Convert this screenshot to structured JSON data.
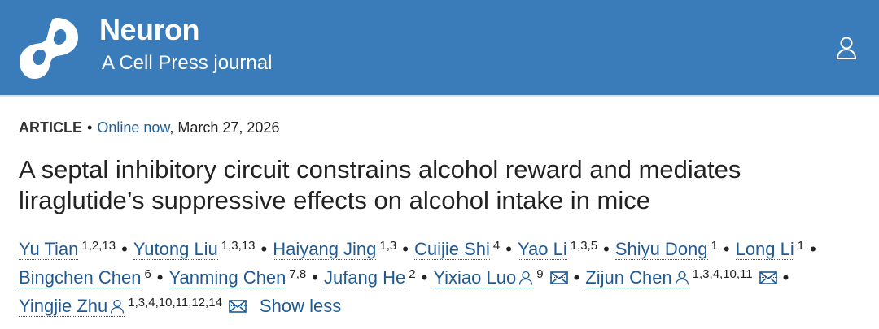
{
  "header": {
    "brand": "Neuron",
    "tagline": "A Cell Press journal",
    "bg_color": "#3a7cb9",
    "logo_icon": "cell-press-logo",
    "user_icon": "person-icon"
  },
  "article": {
    "type": "ARTICLE",
    "separator": "•",
    "online_label": "Online now",
    "date": ", March 27, 2026",
    "title": "A septal inhibitory circuit constrains alcohol reward and mediates liraglutide’s suppressive effects on alcohol intake in mice"
  },
  "authors": {
    "lines": [
      [
        {
          "name": "Yu Tian",
          "sup": "1,2,13",
          "sep": "•"
        },
        {
          "name": "Yutong Liu",
          "sup": "1,3,13",
          "sep": "•"
        },
        {
          "name": "Haiyang Jing",
          "sup": "1,3",
          "sep": "•"
        },
        {
          "name": "Cuijie Shi",
          "sup": "4",
          "sep": "•"
        },
        {
          "name": "Yao Li",
          "sup": "1,3,5",
          "sep": "•"
        },
        {
          "name": "Shiyu Dong",
          "sup": "1",
          "sep": "•"
        },
        {
          "name": "Long Li",
          "sup": "1",
          "sep": "•"
        }
      ],
      [
        {
          "name": "Bingchen Chen",
          "sup": "6",
          "sep": "•"
        },
        {
          "name": "Yanming Chen",
          "sup": "7,8",
          "sep": "•"
        },
        {
          "name": "Jufang He",
          "sup": "2",
          "sep": "•"
        },
        {
          "name": "Yixiao Luo",
          "sup": "9",
          "corresponding": true,
          "email": true,
          "sep": "•"
        },
        {
          "name": "Zijun Chen",
          "sup": "1,3,4,10,11",
          "corresponding": true,
          "email": true,
          "sep": "•"
        }
      ],
      [
        {
          "name": "Yingjie Zhu",
          "sup": "1,3,4,10,11,12,14",
          "corresponding": true,
          "email": true,
          "sep": ""
        }
      ]
    ],
    "show_less": "Show less"
  }
}
